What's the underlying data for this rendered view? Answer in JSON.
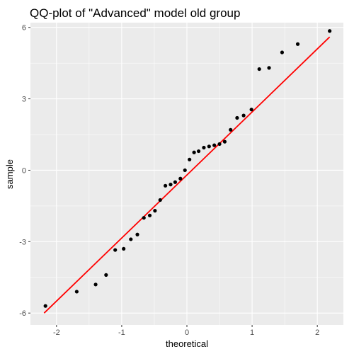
{
  "chart_data": {
    "type": "scatter",
    "title": "QQ-plot of \"Advanced\" model old group",
    "xlabel": "theoretical",
    "ylabel": "sample",
    "xlim": [
      -2.4,
      2.4
    ],
    "ylim": [
      -6.5,
      6.2
    ],
    "x_ticks": [
      -2,
      -1,
      0,
      1,
      2
    ],
    "x_tick_labels": [
      "-2",
      "-1",
      "0",
      "1",
      "2"
    ],
    "y_ticks": [
      -6,
      -3,
      0,
      3,
      6
    ],
    "y_tick_labels": [
      "-6",
      "-3",
      "0",
      "3",
      "6"
    ],
    "grid": true,
    "legend": "none",
    "colors": {
      "panel_bg": "#ebebeb",
      "grid_major": "#ffffff",
      "points": "#000000",
      "line": "#ff0000"
    },
    "points": [
      [
        -2.17,
        -5.7
      ],
      [
        -1.69,
        -5.1
      ],
      [
        -1.4,
        -4.8
      ],
      [
        -1.24,
        -4.4
      ],
      [
        -1.1,
        -3.35
      ],
      [
        -0.97,
        -3.3
      ],
      [
        -0.86,
        -2.9
      ],
      [
        -0.76,
        -2.7
      ],
      [
        -0.66,
        -2.0
      ],
      [
        -0.57,
        -1.9
      ],
      [
        -0.49,
        -1.7
      ],
      [
        -0.41,
        -1.25
      ],
      [
        -0.33,
        -0.65
      ],
      [
        -0.25,
        -0.6
      ],
      [
        -0.18,
        -0.5
      ],
      [
        -0.1,
        -0.35
      ],
      [
        -0.03,
        0.0
      ],
      [
        0.04,
        0.45
      ],
      [
        0.11,
        0.75
      ],
      [
        0.18,
        0.8
      ],
      [
        0.26,
        0.95
      ],
      [
        0.34,
        1.0
      ],
      [
        0.42,
        1.05
      ],
      [
        0.5,
        1.1
      ],
      [
        0.58,
        1.2
      ],
      [
        0.67,
        1.7
      ],
      [
        0.77,
        2.2
      ],
      [
        0.87,
        2.3
      ],
      [
        0.99,
        2.55
      ],
      [
        1.11,
        4.25
      ],
      [
        1.26,
        4.3
      ],
      [
        1.46,
        4.95
      ],
      [
        1.7,
        5.3
      ],
      [
        2.19,
        5.85
      ]
    ],
    "reference_line": [
      [
        -2.19,
        -6.0
      ],
      [
        2.19,
        5.6
      ]
    ]
  }
}
